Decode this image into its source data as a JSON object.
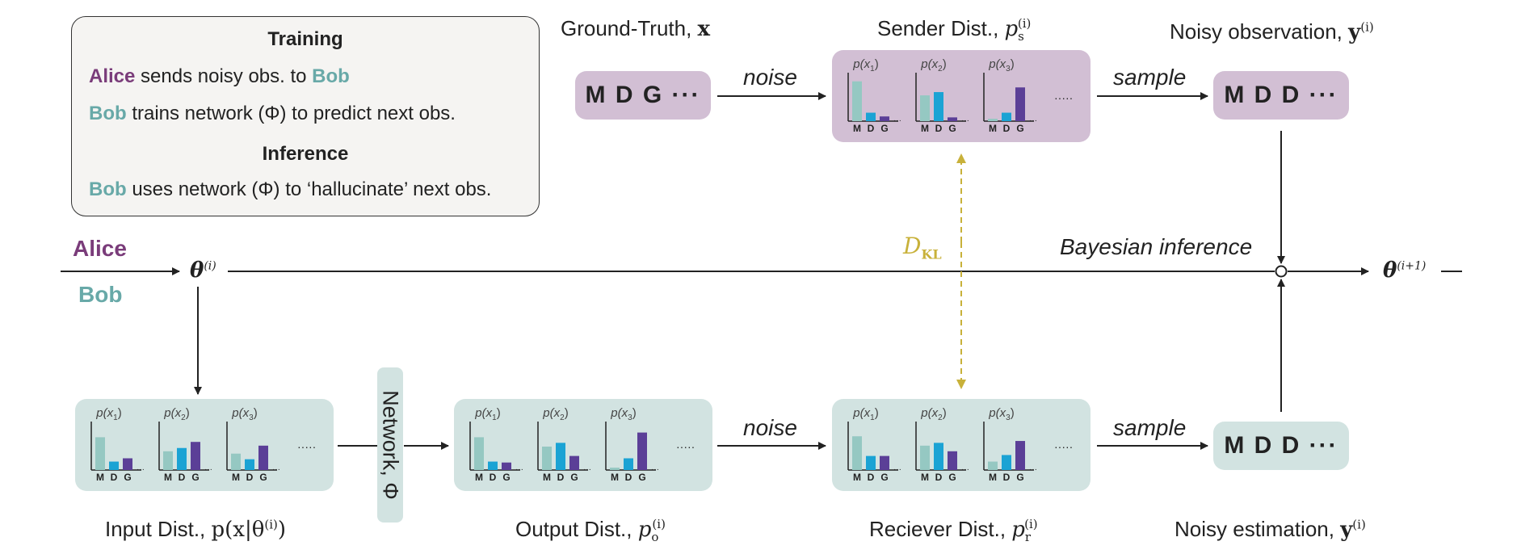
{
  "legend": {
    "training_title": "Training",
    "training_line1": {
      "alice": "Alice",
      "mid": " sends noisy obs. to ",
      "bob": "Bob"
    },
    "training_line2": {
      "bob": "Bob",
      "rest": " trains network (Φ) to predict next obs."
    },
    "inference_title": "Inference",
    "inference_line": {
      "bob": "Bob",
      "rest": " uses network (Φ) to ‘hallucinate’ next obs."
    }
  },
  "roles": {
    "alice": "Alice",
    "bob": "Bob"
  },
  "nodes": {
    "ground_truth": {
      "label": "Ground-Truth, ",
      "symbol": "x",
      "seq": "M D G ···"
    },
    "sender_dist": {
      "label": "Sender Dist., ",
      "symbol": "p",
      "sub": "s",
      "sup": "(i)"
    },
    "noisy_observation": {
      "label": "Noisy observation, ",
      "symbol": "y",
      "sup": "(i)",
      "seq": "M D D ···"
    },
    "input_dist": {
      "label": "Input Dist., ",
      "formula": "p(x|θ",
      "sup": "(i)",
      "close": ")"
    },
    "output_dist": {
      "label": "Output Dist., ",
      "symbol": "p",
      "sub": "o",
      "sup": "(i)"
    },
    "receiver_dist": {
      "label": "Reciever Dist., ",
      "symbol": "p",
      "sub": "r",
      "sup": "(i)"
    },
    "noisy_estimation": {
      "label": "Noisy estimation, ",
      "symbol": "y",
      "sup": "(i)",
      "seq": "M D D ···"
    },
    "network": {
      "label": "Network, Φ"
    }
  },
  "edges": {
    "noise_top": "noise",
    "sample_top": "sample",
    "noise_bottom": "noise",
    "sample_bottom": "sample",
    "bayesian": "Bayesian inference",
    "dkl": "D",
    "dkl_sub": "KL"
  },
  "params": {
    "theta": "θ",
    "theta_i_sup": "(i)",
    "theta_next_sup": "(i+1)"
  },
  "histogram": {
    "titles": [
      "p(x",
      "p(x",
      "p(x"
    ],
    "title_subs": [
      "1",
      "2",
      "3"
    ],
    "axis_labels": [
      "M",
      "D",
      "G"
    ],
    "ellipsis": "·····",
    "series_colors": [
      "#95c8c2",
      "#1ba3d4",
      "#5b3f97"
    ]
  },
  "distributions": {
    "sender": [
      [
        0.85,
        0.18,
        0.1
      ],
      [
        0.55,
        0.62,
        0.08
      ],
      [
        0.05,
        0.18,
        0.72
      ]
    ],
    "input": [
      [
        0.7,
        0.18,
        0.25
      ],
      [
        0.4,
        0.47,
        0.6
      ],
      [
        0.35,
        0.23,
        0.52
      ]
    ],
    "output": [
      [
        0.7,
        0.18,
        0.16
      ],
      [
        0.5,
        0.58,
        0.3
      ],
      [
        0.05,
        0.25,
        0.8
      ]
    ],
    "receiver": [
      [
        0.72,
        0.3,
        0.3
      ],
      [
        0.52,
        0.58,
        0.4
      ],
      [
        0.18,
        0.32,
        0.62
      ]
    ]
  },
  "colors": {
    "alice": "#7a3c7a",
    "bob": "#68a9a8",
    "dkl": "#c8b13a",
    "purple_box": "#d2bfd4",
    "teal_box": "#d2e3e1"
  }
}
